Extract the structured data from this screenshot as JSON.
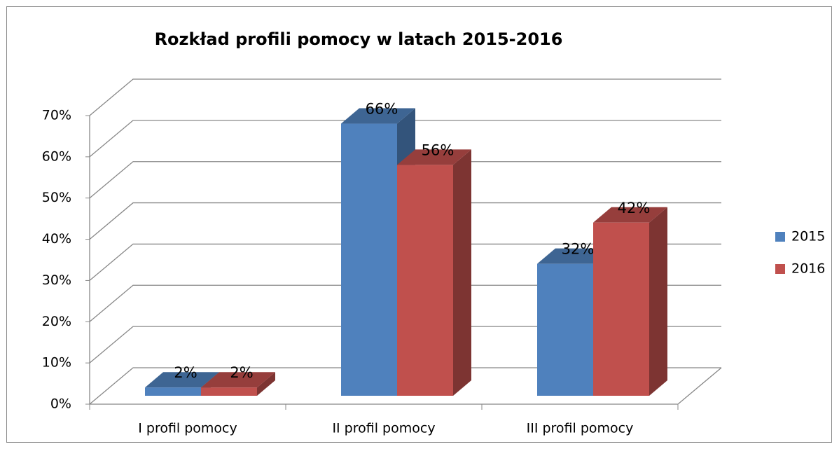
{
  "chart_data": {
    "type": "bar3d",
    "title": "Rozkład profili pomocy w latach 2015-2016",
    "categories": [
      "I profil pomocy",
      "II profil pomocy",
      "III profil pomocy"
    ],
    "series": [
      {
        "name": "2015",
        "color": "#4f81bd",
        "values": [
          2,
          66,
          32
        ],
        "value_labels": [
          "2%",
          "66%",
          "32%"
        ]
      },
      {
        "name": "2016",
        "color": "#c0504d",
        "values": [
          2,
          56,
          42
        ],
        "value_labels": [
          "2%",
          "56%",
          "42%"
        ]
      }
    ],
    "ylim": [
      0,
      70
    ],
    "yticks": [
      {
        "value": 0,
        "label": "0%"
      },
      {
        "value": 10,
        "label": "10%"
      },
      {
        "value": 20,
        "label": "20%"
      },
      {
        "value": 30,
        "label": "30%"
      },
      {
        "value": 40,
        "label": "40%"
      },
      {
        "value": 50,
        "label": "50%"
      },
      {
        "value": 60,
        "label": "60%"
      },
      {
        "value": 70,
        "label": "70%"
      }
    ],
    "grid": true,
    "legend": "right"
  }
}
